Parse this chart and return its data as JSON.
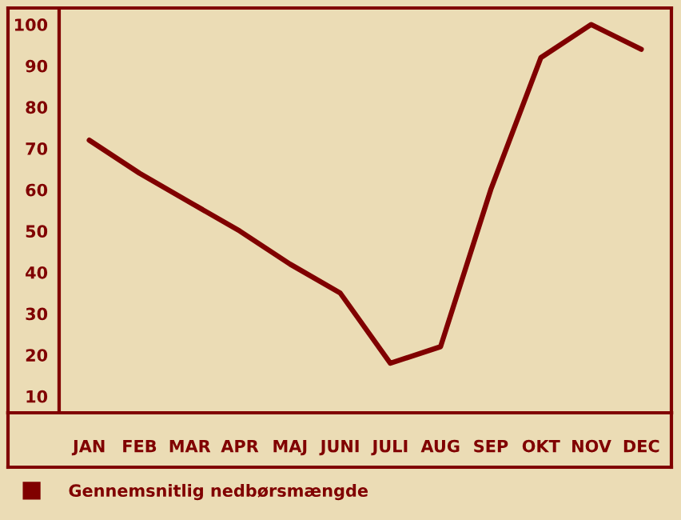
{
  "chart_data": {
    "type": "line",
    "categories": [
      "JAN",
      "FEB",
      "MAR",
      "APR",
      "MAJ",
      "JUNI",
      "JULI",
      "AUG",
      "SEP",
      "OKT",
      "NOV",
      "DEC"
    ],
    "series": [
      {
        "name": "Gennemsnitlig nedbørsmængde",
        "color": "#800000",
        "values": [
          72,
          64,
          57,
          50,
          42,
          35,
          18,
          22,
          60,
          92,
          100,
          94
        ]
      }
    ],
    "ylim": [
      6,
      104
    ],
    "yticks": [
      10,
      20,
      30,
      40,
      50,
      60,
      70,
      80,
      90,
      100
    ],
    "grid": false,
    "legend": "bottom left",
    "marker": "none",
    "line_style": "solid"
  }
}
